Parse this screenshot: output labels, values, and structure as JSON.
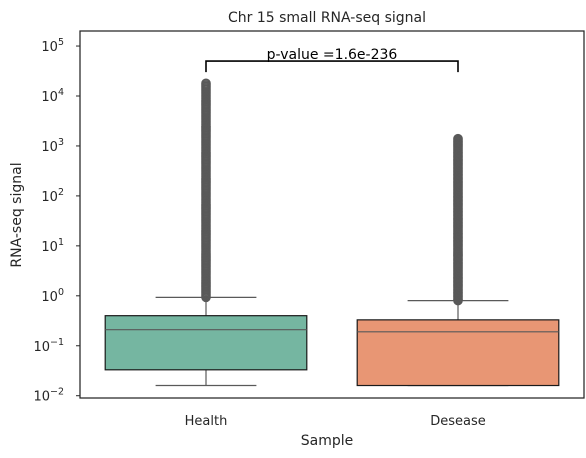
{
  "chart_data": {
    "type": "box",
    "title": "Chr 15 small RNA-seq signal",
    "xlabel": "Sample",
    "ylabel": "RNA-seq signal",
    "yscale": "log",
    "ylim": [
      0.009,
      200000
    ],
    "yticks": [
      {
        "value": 0.01,
        "mant": "10",
        "exp": "−2"
      },
      {
        "value": 0.1,
        "mant": "10",
        "exp": "−1"
      },
      {
        "value": 1,
        "mant": "10",
        "exp": "0"
      },
      {
        "value": 10,
        "mant": "10",
        "exp": "1"
      },
      {
        "value": 100,
        "mant": "10",
        "exp": "2"
      },
      {
        "value": 1000,
        "mant": "10",
        "exp": "3"
      },
      {
        "value": 10000,
        "mant": "10",
        "exp": "4"
      },
      {
        "value": 100000,
        "mant": "10",
        "exp": "5"
      }
    ],
    "categories": [
      "Health",
      "Desease"
    ],
    "boxes": [
      {
        "category": "Health",
        "color": "#75b6a1",
        "whislo": 0.016,
        "q1": 0.033,
        "med": 0.21,
        "q3": 0.4,
        "whishi": 0.93,
        "flier_min": 0.93,
        "flier_max": 18000
      },
      {
        "category": "Desease",
        "color": "#e89674",
        "whislo": 0.016,
        "q1": 0.016,
        "med": 0.19,
        "q3": 0.33,
        "whishi": 0.8,
        "flier_min": 0.8,
        "flier_max": 1400
      }
    ],
    "annotation": {
      "text": "p-value =1.6e-236",
      "y": 50000,
      "tick_bottom": 30000
    },
    "grid": false,
    "legend": "none"
  }
}
